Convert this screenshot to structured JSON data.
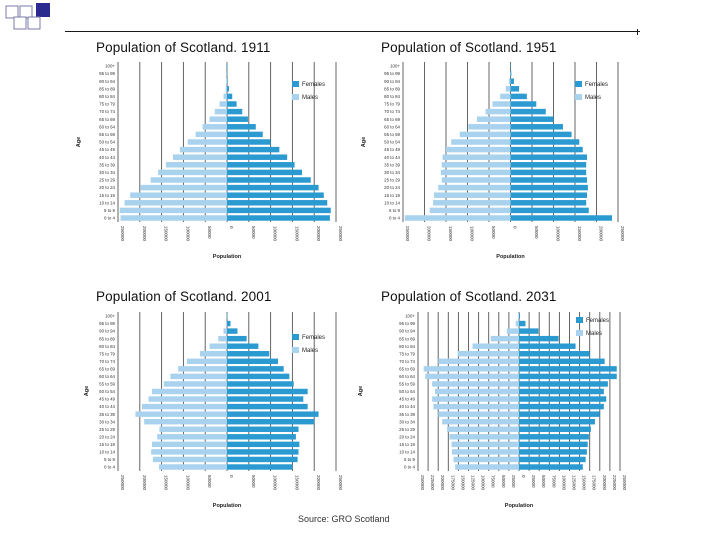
{
  "colors": {
    "females": "#2a9ad0",
    "males": "#a8d2ee",
    "grid": "#555555",
    "deco_square": "#2b2b8f"
  },
  "decoration": {
    "icon": "checkered-squares-icon"
  },
  "age_groups": [
    "0 to 4",
    "5 to 9",
    "10 to 14",
    "15 to 19",
    "20 to 24",
    "25 to 29",
    "30 to 34",
    "35 to 39",
    "40 to 44",
    "45 to 49",
    "50 to 54",
    "55 to 59",
    "60 to 64",
    "65 to 69",
    "70 to 74",
    "75 to 79",
    "80 to 84",
    "85 to 89",
    "90 to 94",
    "95 to 99",
    "100+"
  ],
  "source": "Source: GRO Scotland",
  "chart_data": [
    {
      "type": "bar",
      "title": "Population of Scotland. 1911",
      "xlabel": "Population",
      "ylabel": "Age",
      "xlim": [
        -250000,
        250000
      ],
      "xticks": [
        -250000,
        -200000,
        -150000,
        -100000,
        -50000,
        0,
        50000,
        100000,
        150000,
        200000,
        250000
      ],
      "xtick_labels": [
        "250000",
        "200000",
        "150000",
        "100000",
        "50000",
        "0",
        "50000",
        "100000",
        "150000",
        "200000",
        "250000"
      ],
      "legend": [
        "Females",
        "Males"
      ],
      "series": [
        {
          "name": "Females",
          "values": [
            236000,
            238000,
            230000,
            222000,
            210000,
            192000,
            172000,
            155000,
            138000,
            120000,
            100000,
            82000,
            66000,
            48000,
            35000,
            22000,
            12000,
            4500,
            1500,
            400,
            100
          ]
        },
        {
          "name": "Males",
          "values": [
            244000,
            246000,
            235000,
            222000,
            198000,
            175000,
            158000,
            140000,
            124000,
            108000,
            90000,
            72000,
            56000,
            40000,
            28000,
            17000,
            8000,
            3000,
            800,
            200,
            50
          ]
        }
      ]
    },
    {
      "type": "bar",
      "title": "Population of Scotland. 1951",
      "xlabel": "Population",
      "ylabel": "Age",
      "xlim": [
        -250000,
        250000
      ],
      "xticks": [
        -250000,
        -200000,
        -150000,
        -100000,
        -50000,
        0,
        50000,
        100000,
        150000,
        200000,
        250000
      ],
      "xtick_labels": [
        "250000",
        "200000",
        "150000",
        "100000",
        "50000",
        "0",
        "50000",
        "100000",
        "150000",
        "200000",
        "250000"
      ],
      "legend": [
        "Females",
        "Males"
      ],
      "series": [
        {
          "name": "Females",
          "values": [
            236000,
            182000,
            176000,
            178000,
            180000,
            178000,
            176000,
            176000,
            178000,
            168000,
            160000,
            142000,
            122000,
            100000,
            82000,
            60000,
            38000,
            20000,
            8000,
            2000,
            300
          ]
        },
        {
          "name": "Males",
          "values": [
            246000,
            188000,
            180000,
            178000,
            168000,
            160000,
            162000,
            160000,
            158000,
            150000,
            138000,
            118000,
            98000,
            78000,
            58000,
            42000,
            24000,
            11000,
            4000,
            1000,
            150
          ]
        }
      ]
    },
    {
      "type": "bar",
      "title": "Population of Scotland. 2001",
      "xlabel": "Population",
      "ylabel": "Age",
      "xlim": [
        -250000,
        250000
      ],
      "xticks": [
        -250000,
        -200000,
        -150000,
        -100000,
        -50000,
        0,
        50000,
        100000,
        150000,
        200000,
        250000
      ],
      "xtick_labels": [
        "250000",
        "200000",
        "150000",
        "100000",
        "50000",
        "0",
        "50000",
        "100000",
        "150000",
        "200000",
        "250000"
      ],
      "legend": [
        "Females",
        "Males"
      ],
      "series": [
        {
          "name": "Females",
          "values": [
            150000,
            162000,
            164000,
            166000,
            158000,
            164000,
            200000,
            210000,
            185000,
            175000,
            185000,
            153000,
            143000,
            130000,
            117000,
            97000,
            72000,
            45000,
            24000,
            8000,
            1000
          ]
        },
        {
          "name": "Males",
          "values": [
            156000,
            170000,
            174000,
            172000,
            160000,
            155000,
            190000,
            210000,
            195000,
            180000,
            172000,
            145000,
            130000,
            112000,
            92000,
            62000,
            40000,
            20000,
            8000,
            2000,
            300
          ]
        }
      ]
    },
    {
      "type": "bar",
      "title": "Population of Scotland. 2031",
      "xlabel": "Population",
      "ylabel": "Age",
      "xlim": [
        -250000,
        250000
      ],
      "xticks": [
        -250000,
        -225000,
        -200000,
        -175000,
        -150000,
        -125000,
        -100000,
        -75000,
        -50000,
        -25000,
        0,
        25000,
        50000,
        75000,
        100000,
        125000,
        150000,
        175000,
        200000,
        225000,
        250000
      ],
      "xtick_labels": [
        "250000",
        "225000",
        "200000",
        "175000",
        "150000",
        "125000",
        "100000",
        "75000",
        "50000",
        "25000",
        "0",
        "25000",
        "50000",
        "75000",
        "100000",
        "125000",
        "150000",
        "175000",
        "200000",
        "225000",
        "250000"
      ],
      "legend": [
        "Females",
        "Males"
      ],
      "series": [
        {
          "name": "Females",
          "values": [
            158000,
            165000,
            168000,
            170000,
            173000,
            178000,
            188000,
            200000,
            210000,
            216000,
            210000,
            220000,
            242000,
            242000,
            212000,
            175000,
            140000,
            98000,
            48000,
            16000,
            2500
          ]
        },
        {
          "name": "Males",
          "values": [
            158000,
            162000,
            166000,
            167000,
            172000,
            178000,
            190000,
            200000,
            212000,
            215000,
            208000,
            215000,
            232000,
            236000,
            200000,
            152000,
            115000,
            70000,
            30000,
            8000,
            1000
          ]
        }
      ]
    }
  ]
}
